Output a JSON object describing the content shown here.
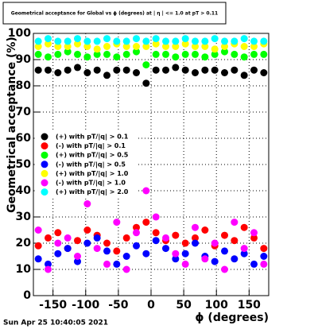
{
  "chart_data": {
    "type": "scatter",
    "title": "Geometrical acceptance for Global vs ϕ (degrees) at | η | <= 1.0 at pT > 0.11",
    "x_label": "ϕ (degrees)",
    "y_label": "Geometrical acceptance (%)",
    "date": "Sun Apr 25 10:40:05 2021",
    "xlim": [
      -180,
      180
    ],
    "ylim": [
      0,
      100
    ],
    "xticks": [
      -150,
      -100,
      -50,
      0,
      50,
      100,
      150
    ],
    "yticks": [
      0,
      10,
      20,
      30,
      40,
      50,
      60,
      70,
      80,
      90,
      100
    ],
    "grid": true,
    "legend": "left",
    "x": [
      -172.5,
      -157.5,
      -142.5,
      -127.5,
      -112.5,
      -97.5,
      -82.5,
      -67.5,
      -52.5,
      -37.5,
      -22.5,
      -7.5,
      7.5,
      22.5,
      37.5,
      52.5,
      67.5,
      82.5,
      97.5,
      112.5,
      127.5,
      142.5,
      157.5,
      172.5
    ],
    "series": [
      {
        "name": "(+) with pT/|q| > 0.1",
        "color": "#000000",
        "values": [
          86,
          86,
          85,
          86,
          87,
          85,
          86,
          84,
          86,
          86,
          85,
          81,
          86,
          86,
          87,
          86,
          85,
          86,
          86,
          85,
          86,
          84,
          86,
          85
        ]
      },
      {
        "name": "(-) with pT/|q| > 0.1",
        "color": "#ff0000",
        "values": [
          19,
          22,
          24,
          18,
          21,
          25,
          23,
          20,
          17,
          22,
          26,
          28,
          24,
          21,
          23,
          20,
          22,
          25,
          19,
          23,
          21,
          26,
          22,
          18
        ]
      },
      {
        "name": "(+) with pT/|q| > 0.5",
        "color": "#00ff00",
        "values": [
          92,
          91,
          92,
          93,
          92,
          91,
          92,
          92,
          91,
          92,
          93,
          88,
          92,
          92,
          91,
          92,
          92,
          91,
          92,
          93,
          92,
          91,
          92,
          92
        ]
      },
      {
        "name": "(-) with pT/|q| > 0.5",
        "color": "#0000ff",
        "values": [
          14,
          12,
          16,
          18,
          13,
          20,
          22,
          17,
          12,
          15,
          19,
          16,
          21,
          18,
          14,
          16,
          20,
          15,
          13,
          17,
          14,
          16,
          12,
          15
        ]
      },
      {
        "name": "(+) with pT/|q| > 1.0",
        "color": "#ffff00",
        "values": [
          95,
          96,
          95,
          95,
          96,
          95,
          94,
          95,
          96,
          95,
          95,
          95,
          96,
          95,
          95,
          96,
          95,
          95,
          94,
          95,
          96,
          95,
          95,
          96
        ]
      },
      {
        "name": "(-) with pT/|q| > 1.0",
        "color": "#ff00ff",
        "values": [
          25,
          10,
          20,
          22,
          15,
          35,
          18,
          12,
          28,
          10,
          24,
          40,
          30,
          22,
          16,
          12,
          26,
          14,
          20,
          10,
          28,
          18,
          24,
          12
        ]
      },
      {
        "name": "(+) with pT/|q| > 2.0",
        "color": "#00ffff",
        "values": [
          97,
          98,
          97,
          97,
          98,
          97,
          97,
          98,
          97,
          97,
          98,
          97,
          98,
          97,
          97,
          98,
          97,
          97,
          98,
          97,
          97,
          98,
          97,
          97
        ]
      }
    ]
  }
}
